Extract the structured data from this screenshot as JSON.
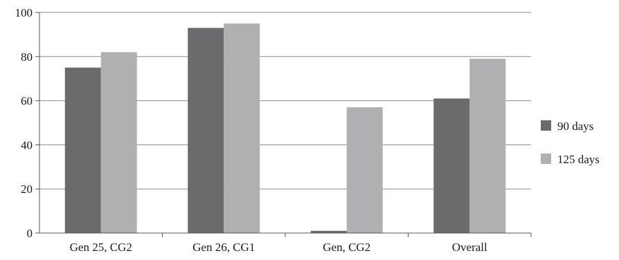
{
  "chart_data": {
    "type": "bar",
    "title": "",
    "xlabel": "",
    "ylabel": "",
    "categories": [
      "Gen 25, CG2",
      "Gen 26, CG1",
      "Gen, CG2",
      "Overall"
    ],
    "series": [
      {
        "name": "90 days",
        "values": [
          75,
          93,
          1,
          61
        ],
        "color": "#6b6b6e"
      },
      {
        "name": "125 days",
        "values": [
          82,
          95,
          57,
          79
        ],
        "color": "#b0b0b2"
      }
    ],
    "ylim": [
      0,
      100
    ],
    "yticks": [
      0,
      20,
      40,
      60,
      80,
      100
    ],
    "grid": true,
    "legend_position": "right"
  }
}
